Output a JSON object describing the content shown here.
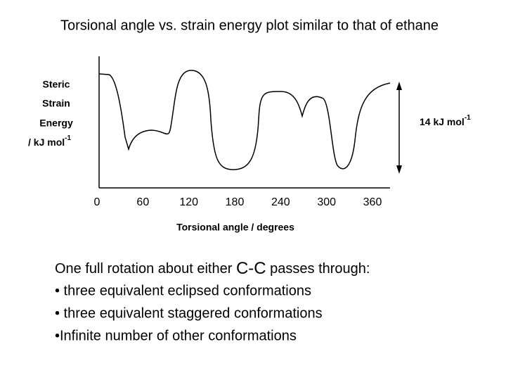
{
  "chart_data": {
    "type": "line",
    "title": "Torsional angle vs. strain energy plot similar to that of ethane",
    "y_label": [
      "Steric",
      "Strain",
      "Energy",
      "/ kJ mol"
    ],
    "y_label_sup": "-1",
    "x_label": "Torsional angle / degrees",
    "xlim": [
      0,
      360
    ],
    "xticks": [
      0,
      60,
      120,
      180,
      240,
      300,
      360
    ],
    "annotation": "14 kJ mol",
    "annotation_sup": "-1"
  },
  "text": {
    "intro": [
      "One full rotation about either ",
      "C-C",
      " passes through:"
    ],
    "bullets": [
      "• three equivalent eclipsed conformations",
      "• three equivalent staggered conformations",
      "•Infinite number of other conformations"
    ]
  }
}
